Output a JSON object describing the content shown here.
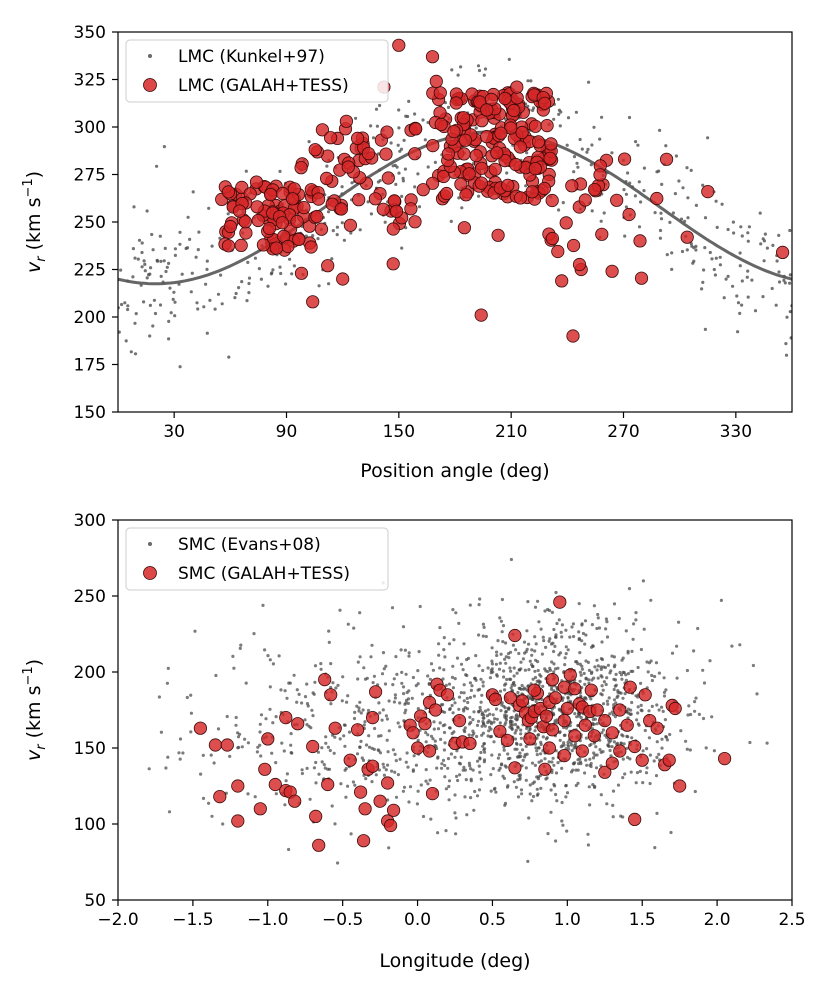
{
  "chart_data": [
    {
      "type": "scatter",
      "id": "lmc",
      "xlabel": "Position angle (deg)",
      "ylabel_main": "v",
      "ylabel_sub": "r",
      "ylabel_unit": " (km s",
      "ylabel_exp": "−1",
      "ylabel_close": ")",
      "xlim": [
        0,
        360
      ],
      "ylim": [
        150,
        350
      ],
      "xticks": [
        30,
        90,
        150,
        210,
        270,
        330
      ],
      "yticks": [
        150,
        175,
        200,
        225,
        250,
        275,
        300,
        325,
        350
      ],
      "xtick_labels": [
        "30",
        "90",
        "150",
        "210",
        "270",
        "330"
      ],
      "ytick_labels": [
        "150",
        "175",
        "200",
        "225",
        "250",
        "275",
        "300",
        "325",
        "350"
      ],
      "legend_position": "top-left",
      "colors": {
        "red": "#d62728",
        "red_edge": "#3a0a0a",
        "dots": "#444444",
        "curve": "#555555"
      },
      "series": [
        {
          "name": "LMC (Kunkel+97)",
          "kind": "small-dots",
          "generator": {
            "count": 520,
            "seed": 11,
            "model": "sine",
            "mean": 258,
            "amp": 40,
            "phase_deg": 195,
            "spread": 20,
            "x_range": [
              0,
              360
            ]
          }
        },
        {
          "name": "LMC (GALAH+TESS)",
          "kind": "large-markers",
          "clusters": [
            {
              "x": [
                55,
                105
              ],
              "y": [
                235,
                270
              ],
              "count": 85
            },
            {
              "x": [
                95,
                160
              ],
              "y": [
                245,
                300
              ],
              "count": 60
            },
            {
              "x": [
                168,
                232
              ],
              "y": [
                262,
                318
              ],
              "count": 185
            },
            {
              "x": [
                230,
                290
              ],
              "y": [
                215,
                285
              ],
              "count": 28
            }
          ],
          "points": [
            [
              150,
              343
            ],
            [
              168,
              337
            ],
            [
              194,
              201
            ],
            [
              243,
              190
            ],
            [
              237,
              219
            ],
            [
              293,
              283
            ],
            [
              315,
              266
            ],
            [
              304,
              242
            ],
            [
              355,
              234
            ],
            [
              170,
              324
            ],
            [
              197,
              309
            ],
            [
              213,
              321
            ],
            [
              122,
              303
            ],
            [
              142,
              321
            ],
            [
              128,
              294
            ],
            [
              159,
              299
            ],
            [
              163,
              267
            ],
            [
              104,
              208
            ],
            [
              112,
              227
            ],
            [
              120,
              220
            ],
            [
              147,
              228
            ],
            [
              74,
              271
            ],
            [
              98,
              223
            ],
            [
              185,
              247
            ],
            [
              203,
              243
            ]
          ]
        }
      ],
      "curve": {
        "name": "model",
        "model": "sine",
        "mean": 257.5,
        "amp": 40,
        "phase_deg": 200
      }
    },
    {
      "type": "scatter",
      "id": "smc",
      "xlabel": "Longitude (deg)",
      "ylabel_main": "v",
      "ylabel_sub": "r",
      "ylabel_unit": " (km s",
      "ylabel_exp": "−1",
      "ylabel_close": ")",
      "xlim": [
        -2.0,
        2.5
      ],
      "ylim": [
        50,
        300
      ],
      "xticks": [
        -2.0,
        -1.5,
        -1.0,
        -0.5,
        0.0,
        0.5,
        1.0,
        1.5,
        2.0,
        2.5
      ],
      "yticks": [
        50,
        100,
        150,
        200,
        250,
        300
      ],
      "xtick_labels": [
        "−2.0",
        "−1.5",
        "−1.0",
        "−0.5",
        "0.0",
        "0.5",
        "1.0",
        "1.5",
        "2.0",
        "2.5"
      ],
      "ytick_labels": [
        "50",
        "100",
        "150",
        "200",
        "250",
        "300"
      ],
      "legend_position": "top-left",
      "series": [
        {
          "name": "SMC (Evans+08)",
          "kind": "small-dots",
          "generator": {
            "count": 1650,
            "seed": 23,
            "components": [
              {
                "frac": 0.62,
                "x_mean": 0.95,
                "x_sd": 0.42,
                "y_mean": 175,
                "y_sd": 28
              },
              {
                "frac": 0.38,
                "x_mean": -0.1,
                "x_sd": 0.75,
                "y_mean": 160,
                "y_sd": 32
              }
            ],
            "x_range": [
              -1.8,
              2.4
            ],
            "y_range": [
              55,
              300
            ]
          }
        },
        {
          "name": "SMC (GALAH+TESS)",
          "kind": "large-markers",
          "points": [
            [
              -1.45,
              163
            ],
            [
              -1.35,
              152
            ],
            [
              -1.27,
              152
            ],
            [
              -1.32,
              118
            ],
            [
              -1.2,
              125
            ],
            [
              -1.2,
              102
            ],
            [
              -1.05,
              110
            ],
            [
              -1.0,
              156
            ],
            [
              -1.02,
              136
            ],
            [
              -0.95,
              126
            ],
            [
              -0.88,
              122
            ],
            [
              -0.85,
              121
            ],
            [
              -0.88,
              170
            ],
            [
              -0.8,
              166
            ],
            [
              -0.82,
              115
            ],
            [
              -0.7,
              151
            ],
            [
              -0.68,
              105
            ],
            [
              -0.66,
              86
            ],
            [
              -0.62,
              195
            ],
            [
              -0.58,
              185
            ],
            [
              -0.6,
              126
            ],
            [
              -0.55,
              163
            ],
            [
              -0.45,
              142
            ],
            [
              -0.4,
              162
            ],
            [
              -0.38,
              121
            ],
            [
              -0.36,
              89
            ],
            [
              -0.33,
              136
            ],
            [
              -0.35,
              110
            ],
            [
              -0.3,
              138
            ],
            [
              -0.3,
              170
            ],
            [
              -0.28,
              187
            ],
            [
              -0.25,
              115
            ],
            [
              -0.2,
              127
            ],
            [
              -0.2,
              102
            ],
            [
              -0.18,
              99
            ],
            [
              -0.16,
              109
            ],
            [
              -0.05,
              165
            ],
            [
              -0.03,
              160
            ],
            [
              0.0,
              150
            ],
            [
              0.02,
              171
            ],
            [
              0.05,
              166
            ],
            [
              0.08,
              148
            ],
            [
              0.1,
              120
            ],
            [
              0.08,
              180
            ],
            [
              0.12,
              175
            ],
            [
              0.13,
              192
            ],
            [
              0.15,
              188
            ],
            [
              0.2,
              185
            ],
            [
              0.25,
              153
            ],
            [
              0.28,
              168
            ],
            [
              0.3,
              154
            ],
            [
              0.35,
              153
            ],
            [
              0.5,
              185
            ],
            [
              0.52,
              182
            ],
            [
              0.55,
              161
            ],
            [
              0.6,
              155
            ],
            [
              0.62,
              183
            ],
            [
              0.65,
              224
            ],
            [
              0.68,
              178
            ],
            [
              0.7,
              181
            ],
            [
              0.72,
              173
            ],
            [
              0.74,
              168
            ],
            [
              0.76,
              170
            ],
            [
              0.78,
              174
            ],
            [
              0.8,
              186
            ],
            [
              0.82,
              176
            ],
            [
              0.84,
              164
            ],
            [
              0.86,
              171
            ],
            [
              0.88,
              180
            ],
            [
              0.9,
              162
            ],
            [
              0.92,
              183
            ],
            [
              0.95,
              246
            ],
            [
              0.98,
              190
            ],
            [
              1.0,
              176
            ],
            [
              1.02,
              198
            ],
            [
              1.05,
              189
            ],
            [
              1.08,
              179
            ],
            [
              1.1,
              177
            ],
            [
              1.12,
              165
            ],
            [
              1.15,
              174
            ],
            [
              1.18,
              158
            ],
            [
              1.2,
              175
            ],
            [
              1.25,
              168
            ],
            [
              1.3,
              160
            ],
            [
              1.35,
              148
            ],
            [
              1.4,
              165
            ],
            [
              1.45,
              151
            ],
            [
              1.5,
              142
            ],
            [
              1.55,
              168
            ],
            [
              1.6,
              163
            ],
            [
              1.65,
              139
            ],
            [
              1.7,
              178
            ],
            [
              1.72,
              176
            ],
            [
              1.75,
              125
            ],
            [
              1.68,
              142
            ],
            [
              1.52,
              185
            ],
            [
              1.45,
              103
            ],
            [
              1.25,
              134
            ],
            [
              1.1,
              148
            ],
            [
              0.85,
              136
            ],
            [
              0.75,
              156
            ],
            [
              0.65,
              137
            ],
            [
              0.98,
              145
            ],
            [
              1.05,
              158
            ],
            [
              1.3,
              140
            ],
            [
              1.35,
              175
            ],
            [
              1.42,
              190
            ],
            [
              2.05,
              143
            ],
            [
              0.9,
              195
            ],
            [
              0.78,
              188
            ],
            [
              1.16,
              188
            ],
            [
              0.98,
              168
            ],
            [
              0.88,
              150
            ]
          ]
        }
      ]
    }
  ]
}
